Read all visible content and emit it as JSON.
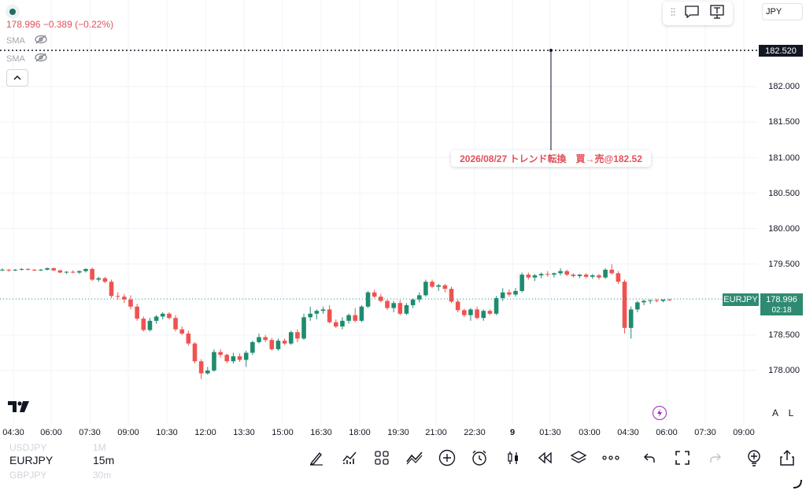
{
  "legend": {
    "price": "178.996",
    "change": "−0.389 (−0.22%)",
    "indicators": [
      {
        "label": "SMA"
      },
      {
        "label": "SMA"
      }
    ]
  },
  "currency": "JPY",
  "price_axis": {
    "labels": [
      "182.000",
      "181.500",
      "181.000",
      "180.500",
      "180.000",
      "179.500",
      "179.000",
      "178.500",
      "178.000"
    ]
  },
  "marker_price": "182.520",
  "symbol_tag": "EURJPY",
  "last_price": "178.996",
  "countdown": "02:18",
  "annotation": "2026/08/27 トレンド転換　買→売@182.52",
  "time_axis": [
    "04:30",
    "06:00",
    "07:30",
    "09:00",
    "10:30",
    "12:00",
    "13:30",
    "15:00",
    "16:30",
    "18:00",
    "19:30",
    "21:00",
    "22:30",
    "9",
    "01:30",
    "03:00",
    "04:30",
    "06:00",
    "07:30",
    "09:00"
  ],
  "scale_buttons": {
    "auto": "A",
    "log": "L"
  },
  "watchlist": {
    "prev": "USDJPY",
    "prev_tf": "1M",
    "current": "EURJPY",
    "current_tf": "15m",
    "next": "GBPJPY",
    "next_tf": "30m"
  },
  "colors": {
    "up": "#26a69a",
    "up_dark": "#1e8c6e",
    "down": "#ef5350",
    "accent": "#2e8b72",
    "text": "#131722"
  },
  "chart_data": {
    "type": "candlestick",
    "ylim": [
      177.75,
      182.75
    ],
    "y_ticks": [
      178.0,
      178.5,
      179.0,
      179.5,
      180.0,
      180.5,
      181.0,
      181.5,
      182.0
    ],
    "candles": [
      [
        179.42,
        179.44,
        179.4,
        179.42
      ],
      [
        179.42,
        179.43,
        179.39,
        179.41
      ],
      [
        179.41,
        179.43,
        179.4,
        179.42
      ],
      [
        179.42,
        179.44,
        179.41,
        179.43
      ],
      [
        179.43,
        179.44,
        179.41,
        179.42
      ],
      [
        179.42,
        179.43,
        179.4,
        179.41
      ],
      [
        179.41,
        179.43,
        179.4,
        179.42
      ],
      [
        179.42,
        179.45,
        179.41,
        179.44
      ],
      [
        179.44,
        179.45,
        179.4,
        179.41
      ],
      [
        179.41,
        179.42,
        179.37,
        179.38
      ],
      [
        179.38,
        179.4,
        179.36,
        179.39
      ],
      [
        179.39,
        179.41,
        179.37,
        179.38
      ],
      [
        179.38,
        179.41,
        179.36,
        179.4
      ],
      [
        179.4,
        179.44,
        179.38,
        179.43
      ],
      [
        179.43,
        179.45,
        179.26,
        179.28
      ],
      [
        179.28,
        179.32,
        179.25,
        179.3
      ],
      [
        179.3,
        179.32,
        179.23,
        179.25
      ],
      [
        179.25,
        179.28,
        179.02,
        179.05
      ],
      [
        179.05,
        179.1,
        179.0,
        179.04
      ],
      [
        179.04,
        179.08,
        178.95,
        179.0
      ],
      [
        179.0,
        179.06,
        178.86,
        178.9
      ],
      [
        178.9,
        178.94,
        178.7,
        178.73
      ],
      [
        178.73,
        178.76,
        178.55,
        178.57
      ],
      [
        178.57,
        178.74,
        178.55,
        178.7
      ],
      [
        178.7,
        178.78,
        178.66,
        178.76
      ],
      [
        178.76,
        178.82,
        178.72,
        178.8
      ],
      [
        178.8,
        178.82,
        178.72,
        178.74
      ],
      [
        178.74,
        178.78,
        178.55,
        178.58
      ],
      [
        178.58,
        178.62,
        178.5,
        178.52
      ],
      [
        178.52,
        178.56,
        178.35,
        178.38
      ],
      [
        178.38,
        178.4,
        178.1,
        178.13
      ],
      [
        178.13,
        178.16,
        177.88,
        177.96
      ],
      [
        177.96,
        178.05,
        177.94,
        178.0
      ],
      [
        178.0,
        178.3,
        177.98,
        178.26
      ],
      [
        178.26,
        178.3,
        178.18,
        178.22
      ],
      [
        178.22,
        178.24,
        178.1,
        178.13
      ],
      [
        178.13,
        178.25,
        178.1,
        178.2
      ],
      [
        178.2,
        178.24,
        178.12,
        178.15
      ],
      [
        178.15,
        178.28,
        178.05,
        178.25
      ],
      [
        178.25,
        178.42,
        178.22,
        178.4
      ],
      [
        178.4,
        178.52,
        178.38,
        178.47
      ],
      [
        178.47,
        178.5,
        178.4,
        178.43
      ],
      [
        178.43,
        178.46,
        178.28,
        178.3
      ],
      [
        178.3,
        178.45,
        178.28,
        178.42
      ],
      [
        178.42,
        178.45,
        178.36,
        178.38
      ],
      [
        178.38,
        178.56,
        178.36,
        178.54
      ],
      [
        178.54,
        178.58,
        178.4,
        178.45
      ],
      [
        178.45,
        178.8,
        178.43,
        178.75
      ],
      [
        178.75,
        178.9,
        178.7,
        178.8
      ],
      [
        178.8,
        178.86,
        178.72,
        178.84
      ],
      [
        178.84,
        178.9,
        178.8,
        178.86
      ],
      [
        178.86,
        178.92,
        178.66,
        178.68
      ],
      [
        178.68,
        178.72,
        178.6,
        178.62
      ],
      [
        178.62,
        178.75,
        178.58,
        178.7
      ],
      [
        178.7,
        178.8,
        178.66,
        178.78
      ],
      [
        178.78,
        178.88,
        178.68,
        178.7
      ],
      [
        178.7,
        178.92,
        178.68,
        178.9
      ],
      [
        178.9,
        179.12,
        178.88,
        179.1
      ],
      [
        179.1,
        179.14,
        179.02,
        179.04
      ],
      [
        179.04,
        179.08,
        178.96,
        178.98
      ],
      [
        178.98,
        179.0,
        178.85,
        178.88
      ],
      [
        178.88,
        178.98,
        178.82,
        178.95
      ],
      [
        178.95,
        178.99,
        178.78,
        178.8
      ],
      [
        178.8,
        178.95,
        178.78,
        178.92
      ],
      [
        178.92,
        179.02,
        178.88,
        179.0
      ],
      [
        179.0,
        179.1,
        178.96,
        179.06
      ],
      [
        179.06,
        179.28,
        179.04,
        179.25
      ],
      [
        179.25,
        179.28,
        179.16,
        179.18
      ],
      [
        179.18,
        179.22,
        179.12,
        179.2
      ],
      [
        179.2,
        179.22,
        179.1,
        179.15
      ],
      [
        179.15,
        179.18,
        178.95,
        178.97
      ],
      [
        178.97,
        179.0,
        178.82,
        178.85
      ],
      [
        178.85,
        178.87,
        178.75,
        178.78
      ],
      [
        178.78,
        178.88,
        178.7,
        178.86
      ],
      [
        178.86,
        178.9,
        178.72,
        178.74
      ],
      [
        178.74,
        178.86,
        178.7,
        178.84
      ],
      [
        178.84,
        178.86,
        178.78,
        178.8
      ],
      [
        178.8,
        179.05,
        178.78,
        179.02
      ],
      [
        179.02,
        179.16,
        178.98,
        179.1
      ],
      [
        179.1,
        179.14,
        179.04,
        179.07
      ],
      [
        179.07,
        179.16,
        179.04,
        179.12
      ],
      [
        179.12,
        179.38,
        179.1,
        179.35
      ],
      [
        179.35,
        179.38,
        179.28,
        179.31
      ],
      [
        179.31,
        179.36,
        179.26,
        179.34
      ],
      [
        179.34,
        179.38,
        179.3,
        179.36
      ],
      [
        179.36,
        179.4,
        179.32,
        179.35
      ],
      [
        179.35,
        179.38,
        179.31,
        179.37
      ],
      [
        179.37,
        179.44,
        179.34,
        179.4
      ],
      [
        179.4,
        179.42,
        179.33,
        179.35
      ],
      [
        179.35,
        179.37,
        179.31,
        179.33
      ],
      [
        179.33,
        179.36,
        179.3,
        179.35
      ],
      [
        179.35,
        179.37,
        179.3,
        179.32
      ],
      [
        179.32,
        179.36,
        179.29,
        179.34
      ],
      [
        179.34,
        179.36,
        179.28,
        179.31
      ],
      [
        179.31,
        179.44,
        179.29,
        179.42
      ],
      [
        179.42,
        179.5,
        179.35,
        179.37
      ],
      [
        179.37,
        179.4,
        179.22,
        179.25
      ],
      [
        179.25,
        179.28,
        178.52,
        178.6
      ],
      [
        178.6,
        178.9,
        178.45,
        178.86
      ],
      [
        178.86,
        178.98,
        178.82,
        178.96
      ],
      [
        178.96,
        179.0,
        178.92,
        178.98
      ],
      [
        178.98,
        179.0,
        178.94,
        178.99
      ],
      [
        178.99,
        179.01,
        178.96,
        178.98
      ],
      [
        178.98,
        179.0,
        178.96,
        179.0
      ],
      [
        179.0,
        179.01,
        178.98,
        178.99
      ]
    ]
  }
}
